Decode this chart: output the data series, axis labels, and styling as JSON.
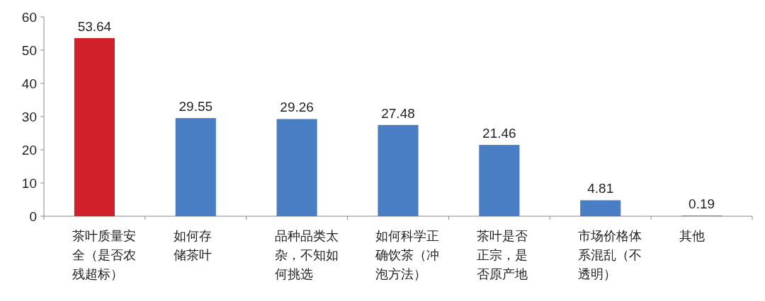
{
  "chart_data": {
    "type": "bar",
    "categories": [
      "茶叶质量安全（是否农残超标）",
      "如何存储茶叶",
      "品种品类太杂，不知如何挑选",
      "如何科学正确饮茶（冲泡方法）",
      "茶叶是否正宗，是否原产地",
      "市场价格体系混乱（不透明）",
      "其他"
    ],
    "values": [
      53.64,
      29.55,
      29.26,
      27.48,
      21.46,
      4.81,
      0.19
    ],
    "colors": [
      "#d0202a",
      "#4a7ec4",
      "#4a7ec4",
      "#4a7ec4",
      "#4a7ec4",
      "#4a7ec4",
      "#4a7ec4"
    ],
    "ylim": [
      0,
      60
    ],
    "yticks": [
      0,
      10,
      20,
      30,
      40,
      50,
      60
    ],
    "data_labels": true,
    "grid": false
  }
}
